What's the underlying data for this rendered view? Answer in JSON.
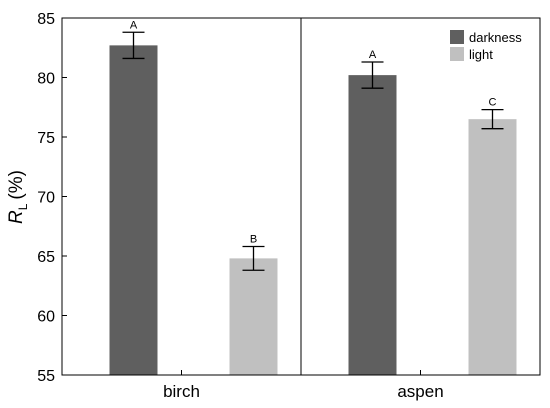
{
  "chart_data": {
    "type": "bar",
    "categories": [
      "birch",
      "aspen"
    ],
    "ylabel": {
      "main": "R",
      "subscript": "L",
      "unit": "(%)"
    },
    "ylim": [
      55,
      85
    ],
    "yticks": [
      55,
      60,
      65,
      70,
      75,
      80,
      85
    ],
    "grid": false,
    "legend_placement": "top-right",
    "series": [
      {
        "name": "darkness",
        "color": "#5f5f5f",
        "values": [
          82.7,
          80.2
        ],
        "errors": [
          1.1,
          1.1
        ],
        "labels": [
          "A",
          "A"
        ]
      },
      {
        "name": "light",
        "color": "#c0c0c0",
        "values": [
          64.8,
          76.5
        ],
        "errors": [
          1.0,
          0.8
        ],
        "labels": [
          "B",
          "C"
        ]
      }
    ]
  }
}
